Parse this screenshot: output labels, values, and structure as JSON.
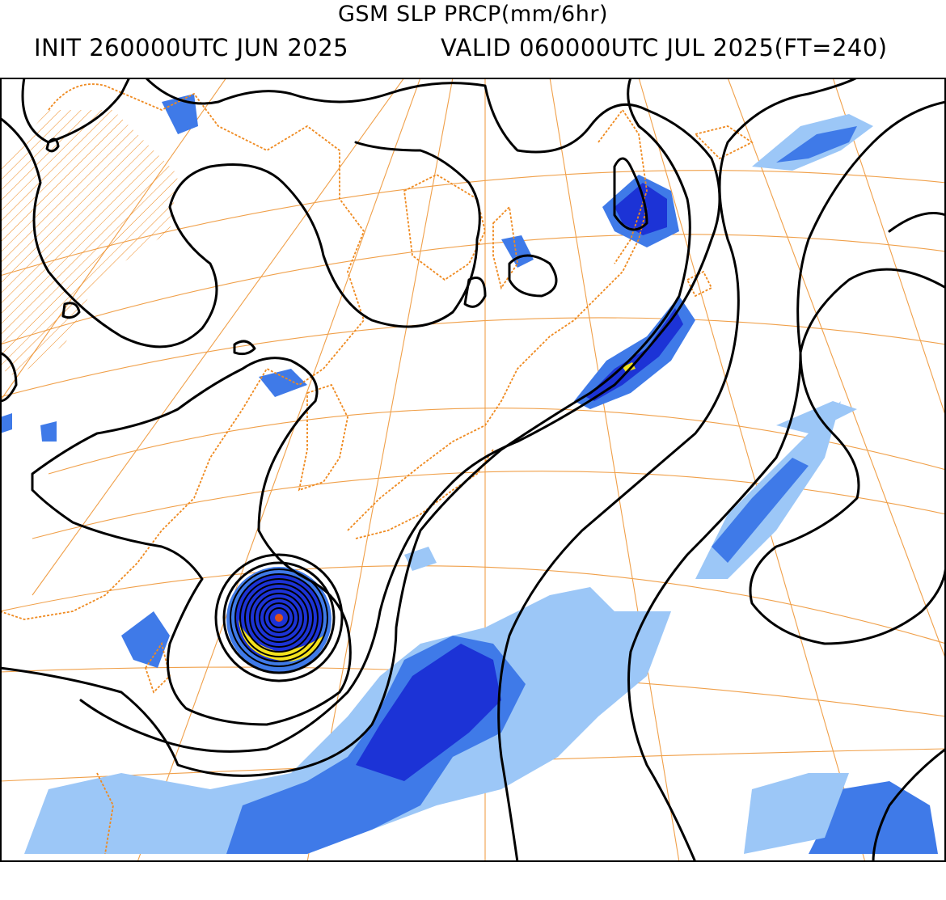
{
  "header": {
    "title": "GSM SLP PRCP(mm/6hr)",
    "init": "INIT 260000UTC JUN 2025",
    "valid": "VALID 060000UTC JUL 2025(FT=240)"
  },
  "colors": {
    "coastline": "#ef8a20",
    "graticule": "#f0a04a",
    "isobar": "#000000",
    "precip_light": "#9cc7f7",
    "precip_medium": "#3f7ae8",
    "precip_heavy": "#1c33d6",
    "precip_very_heavy": "#f4e21e",
    "typhoon_core": "#e0501a"
  }
}
